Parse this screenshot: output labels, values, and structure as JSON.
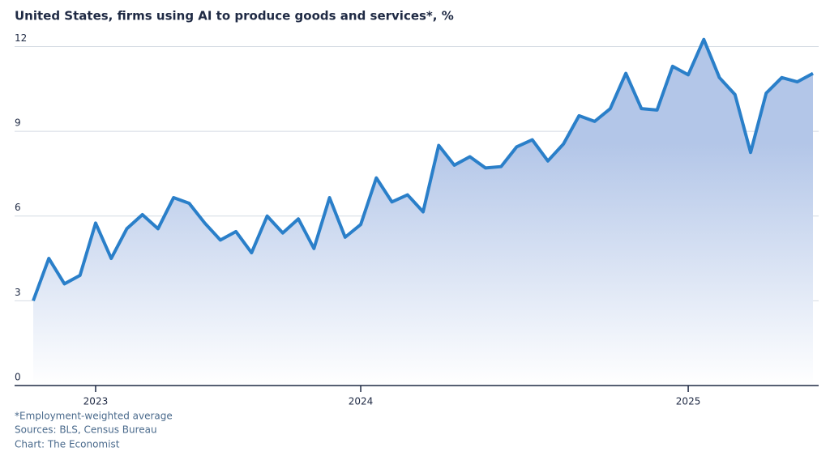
{
  "chart_data": {
    "type": "line",
    "title": "United States, firms using AI to produce goods and services*, %",
    "notes": [
      "*Employment-weighted average",
      "Sources: BLS, Census Bureau",
      "Chart: The Economist"
    ],
    "categories": [
      null,
      null,
      null,
      null,
      "2023",
      null,
      null,
      null,
      null,
      null,
      null,
      null,
      null,
      null,
      null,
      null,
      null,
      null,
      null,
      null,
      null,
      "2024",
      null,
      null,
      null,
      null,
      null,
      null,
      null,
      null,
      null,
      null,
      null,
      null,
      null,
      null,
      null,
      null,
      null,
      null,
      null,
      null,
      "2025",
      null,
      null,
      null,
      null,
      null,
      null,
      null,
      null
    ],
    "series": [
      {
        "name": "Firms using AI",
        "color": "#2a7fc9",
        "values": [
          3.0,
          4.5,
          3.6,
          3.9,
          5.75,
          4.5,
          5.55,
          6.05,
          5.55,
          6.65,
          6.45,
          5.75,
          5.15,
          5.45,
          4.7,
          6.0,
          5.4,
          5.9,
          4.85,
          6.65,
          5.25,
          5.7,
          7.35,
          6.5,
          6.75,
          6.15,
          8.5,
          7.8,
          8.1,
          7.7,
          7.75,
          8.45,
          8.7,
          7.95,
          8.55,
          9.55,
          9.35,
          9.8,
          11.05,
          9.8,
          9.75,
          11.3,
          11.0,
          12.25,
          10.9,
          10.3,
          8.25,
          10.35,
          10.9,
          10.75,
          11.05
        ]
      }
    ],
    "ylim": [
      0,
      12.5
    ],
    "yticks": [
      0,
      3,
      6,
      9,
      12
    ],
    "grid": true,
    "area_color": "#b3c6e8"
  }
}
